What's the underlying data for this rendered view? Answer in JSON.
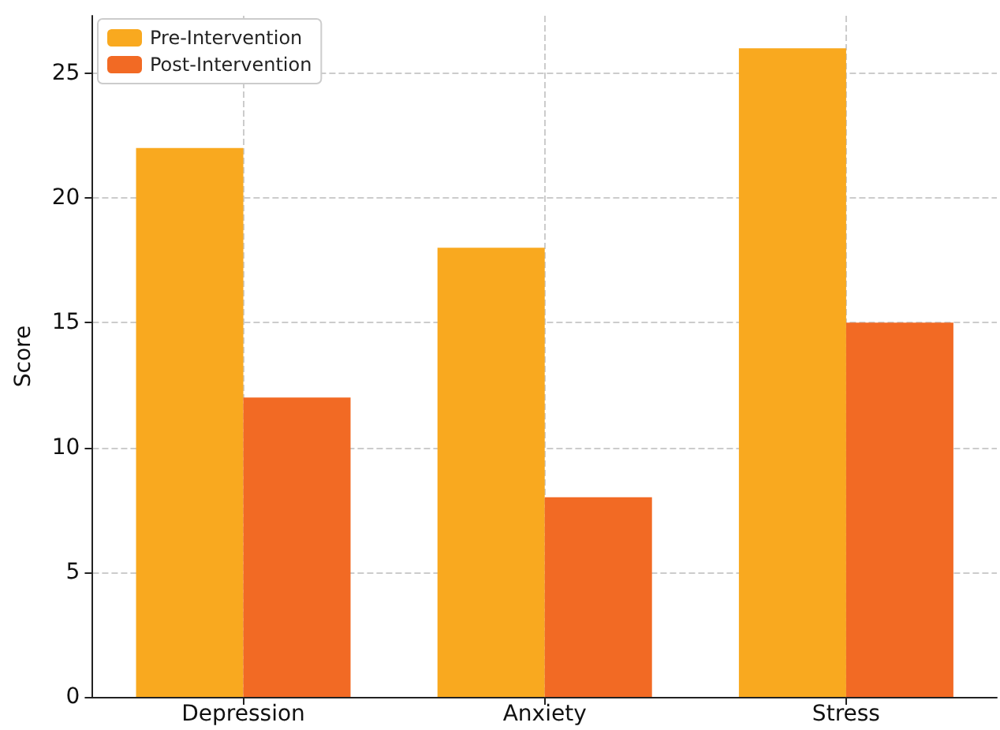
{
  "chart_data": {
    "type": "bar",
    "categories": [
      "Depression",
      "Anxiety",
      "Stress"
    ],
    "ylabel": "Score",
    "ylim": [
      0,
      27.3
    ],
    "yticks": [
      0,
      5,
      10,
      15,
      20,
      25
    ],
    "grid": true,
    "legend": "top left",
    "series": [
      {
        "name": "Pre-Intervention",
        "color": "#f9a91f",
        "values": [
          22,
          18,
          26
        ]
      },
      {
        "name": "Post-Intervention",
        "color": "#f26a24",
        "values": [
          12,
          8,
          15
        ]
      }
    ]
  }
}
